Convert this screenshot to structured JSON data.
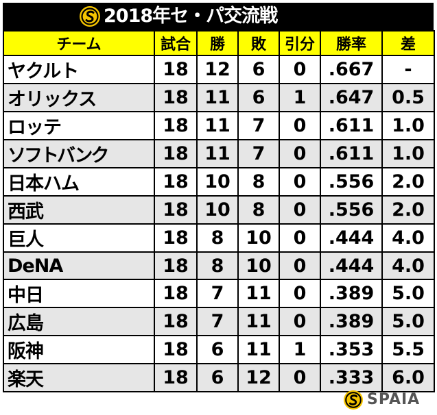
{
  "title": "2018年セ・パ交流戦",
  "colors": {
    "header_bg": "#ffff00",
    "title_bg": "#000000",
    "alt_row_bg": "#e6e6e6",
    "logo_yellow": "#f5c400"
  },
  "logo_icon": "spaia-logo-icon",
  "headers": [
    "チーム",
    "試合",
    "勝",
    "敗",
    "引分",
    "勝率",
    "差"
  ],
  "rows": [
    {
      "team": "ヤクルト",
      "games": "18",
      "wins": "12",
      "losses": "6",
      "draws": "0",
      "pct": ".667",
      "gb": "-"
    },
    {
      "team": "オリックス",
      "games": "18",
      "wins": "11",
      "losses": "6",
      "draws": "1",
      "pct": ".647",
      "gb": "0.5"
    },
    {
      "team": "ロッテ",
      "games": "18",
      "wins": "11",
      "losses": "7",
      "draws": "0",
      "pct": ".611",
      "gb": "1.0"
    },
    {
      "team": "ソフトバンク",
      "games": "18",
      "wins": "11",
      "losses": "7",
      "draws": "0",
      "pct": ".611",
      "gb": "1.0"
    },
    {
      "team": "日本ハム",
      "games": "18",
      "wins": "10",
      "losses": "8",
      "draws": "0",
      "pct": ".556",
      "gb": "2.0"
    },
    {
      "team": "西武",
      "games": "18",
      "wins": "10",
      "losses": "8",
      "draws": "0",
      "pct": ".556",
      "gb": "2.0"
    },
    {
      "team": "巨人",
      "games": "18",
      "wins": "8",
      "losses": "10",
      "draws": "0",
      "pct": ".444",
      "gb": "4.0"
    },
    {
      "team": "DeNA",
      "games": "18",
      "wins": "8",
      "losses": "10",
      "draws": "0",
      "pct": ".444",
      "gb": "4.0"
    },
    {
      "team": "中日",
      "games": "18",
      "wins": "7",
      "losses": "11",
      "draws": "0",
      "pct": ".389",
      "gb": "5.0"
    },
    {
      "team": "広島",
      "games": "18",
      "wins": "7",
      "losses": "11",
      "draws": "0",
      "pct": ".389",
      "gb": "5.0"
    },
    {
      "team": "阪神",
      "games": "18",
      "wins": "6",
      "losses": "11",
      "draws": "1",
      "pct": ".353",
      "gb": "5.5"
    },
    {
      "team": "楽天",
      "games": "18",
      "wins": "6",
      "losses": "12",
      "draws": "0",
      "pct": ".333",
      "gb": "6.0"
    }
  ],
  "footer": {
    "brand": "SPAIA"
  }
}
